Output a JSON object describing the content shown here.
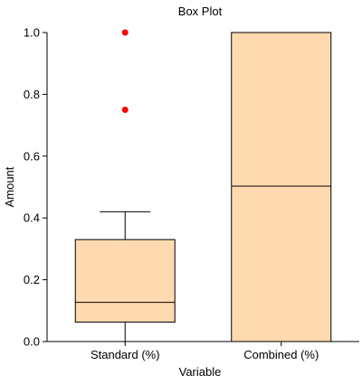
{
  "chart_data": {
    "type": "box",
    "title": "Box Plot",
    "xlabel": "Variable",
    "ylabel": "Amount",
    "ylim": [
      0,
      1.0
    ],
    "yticks": [
      0.0,
      0.2,
      0.4,
      0.6,
      0.8,
      1.0
    ],
    "ytick_labels": [
      "0.0",
      "0.2",
      "0.4",
      "0.6",
      "0.8",
      "1.0"
    ],
    "categories": [
      "Standard (%)",
      "Combined (%)"
    ],
    "boxes": [
      {
        "category": "Standard (%)",
        "whisker_low": 0.0,
        "q1": 0.063,
        "median": 0.127,
        "q3": 0.33,
        "whisker_high": 0.42,
        "outliers": [
          0.75,
          1.0
        ]
      },
      {
        "category": "Combined (%)",
        "whisker_low": 0.0,
        "q1": 0.0,
        "median": 0.503,
        "q3": 1.0,
        "whisker_high": 1.0,
        "outliers": []
      }
    ],
    "grid": false,
    "colors": {
      "box_fill": "#ffdab0",
      "box_stroke": "#000000",
      "outlier": "#ff0000"
    }
  }
}
